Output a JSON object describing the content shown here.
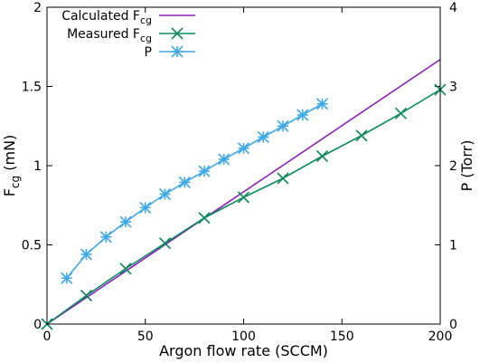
{
  "chart_data": {
    "type": "line",
    "x": {
      "label": "Argon flow rate (SCCM)",
      "lim": [
        0,
        200
      ],
      "ticks": [
        0,
        50,
        100,
        150,
        200
      ]
    },
    "y_left": {
      "label_main": "F",
      "label_sub": "cg",
      "label_tail": " (mN)",
      "lim": [
        0,
        2
      ],
      "ticks": [
        0,
        0.5,
        1,
        1.5,
        2
      ],
      "tick_labels": [
        "0",
        "0.5",
        "1",
        "1.5",
        "2"
      ]
    },
    "y_right": {
      "label": "P (Torr)",
      "lim": [
        0,
        4
      ],
      "ticks": [
        0,
        1,
        2,
        3,
        4
      ],
      "tick_labels": [
        "0",
        "1",
        "2",
        "3",
        "4"
      ]
    },
    "legend_position": "top-left",
    "series": [
      {
        "name_main": "Calculated F",
        "name_sub": "cg",
        "color": "#8B1FBF",
        "marker": "none",
        "axis": "left",
        "x": [
          0,
          200
        ],
        "y": [
          0,
          1.67
        ]
      },
      {
        "name_main": "Measured F",
        "name_sub": "cg",
        "color": "#0E8A5F",
        "marker": "x",
        "axis": "left",
        "x": [
          0,
          20,
          40,
          60,
          80,
          100,
          120,
          140,
          160,
          180,
          200
        ],
        "y": [
          0,
          0.18,
          0.35,
          0.51,
          0.67,
          0.8,
          0.92,
          1.06,
          1.19,
          1.33,
          1.48
        ]
      },
      {
        "name_main": "P",
        "name_sub": "",
        "color": "#3FA9E6",
        "marker": "star",
        "axis": "right",
        "x": [
          10,
          20,
          30,
          40,
          50,
          60,
          70,
          80,
          90,
          100,
          110,
          120,
          130,
          140
        ],
        "y": [
          0.58,
          0.88,
          1.1,
          1.29,
          1.47,
          1.64,
          1.79,
          1.93,
          2.08,
          2.22,
          2.36,
          2.5,
          2.64,
          2.78
        ]
      }
    ]
  }
}
